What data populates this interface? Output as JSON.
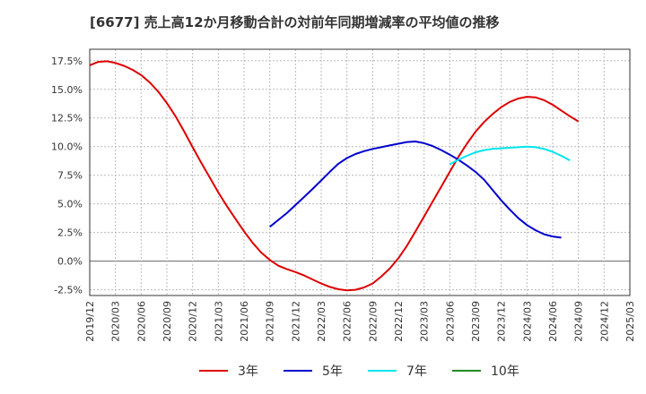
{
  "chart_data": {
    "type": "line",
    "title": "[6677]  売上高12か月移動合計の対前年同期増減率の平均値の推移",
    "xlabel": "",
    "ylabel": "",
    "ylim": [
      -3.0,
      18.5
    ],
    "y_ticks": [
      -2.5,
      0.0,
      2.5,
      5.0,
      7.5,
      10.0,
      12.5,
      15.0,
      17.5
    ],
    "y_tick_labels": [
      "-2.5%",
      "0.0%",
      "2.5%",
      "5.0%",
      "7.5%",
      "10.0%",
      "12.5%",
      "15.0%",
      "17.5%"
    ],
    "x_ticks": [
      "2019/12",
      "2020/03",
      "2020/06",
      "2020/09",
      "2020/12",
      "2021/03",
      "2021/06",
      "2021/09",
      "2021/12",
      "2022/03",
      "2022/06",
      "2022/09",
      "2022/12",
      "2023/03",
      "2023/06",
      "2023/09",
      "2023/12",
      "2024/03",
      "2024/06",
      "2024/09",
      "2024/12",
      "2025/03"
    ],
    "grid": true,
    "legend_position": "bottom",
    "series": [
      {
        "name": "3年",
        "color": "#dd0000",
        "points": [
          [
            "2019/12",
            17.1
          ],
          [
            "2020/01",
            17.4
          ],
          [
            "2020/02",
            17.45
          ],
          [
            "2020/03",
            17.3
          ],
          [
            "2020/04",
            17.05
          ],
          [
            "2020/05",
            16.7
          ],
          [
            "2020/06",
            16.25
          ],
          [
            "2020/07",
            15.6
          ],
          [
            "2020/08",
            14.8
          ],
          [
            "2020/09",
            13.8
          ],
          [
            "2020/10",
            12.65
          ],
          [
            "2020/11",
            11.35
          ],
          [
            "2020/12",
            9.95
          ],
          [
            "2020/01/2021",
            null
          ]
        ]
      }
    ]
  }
}
